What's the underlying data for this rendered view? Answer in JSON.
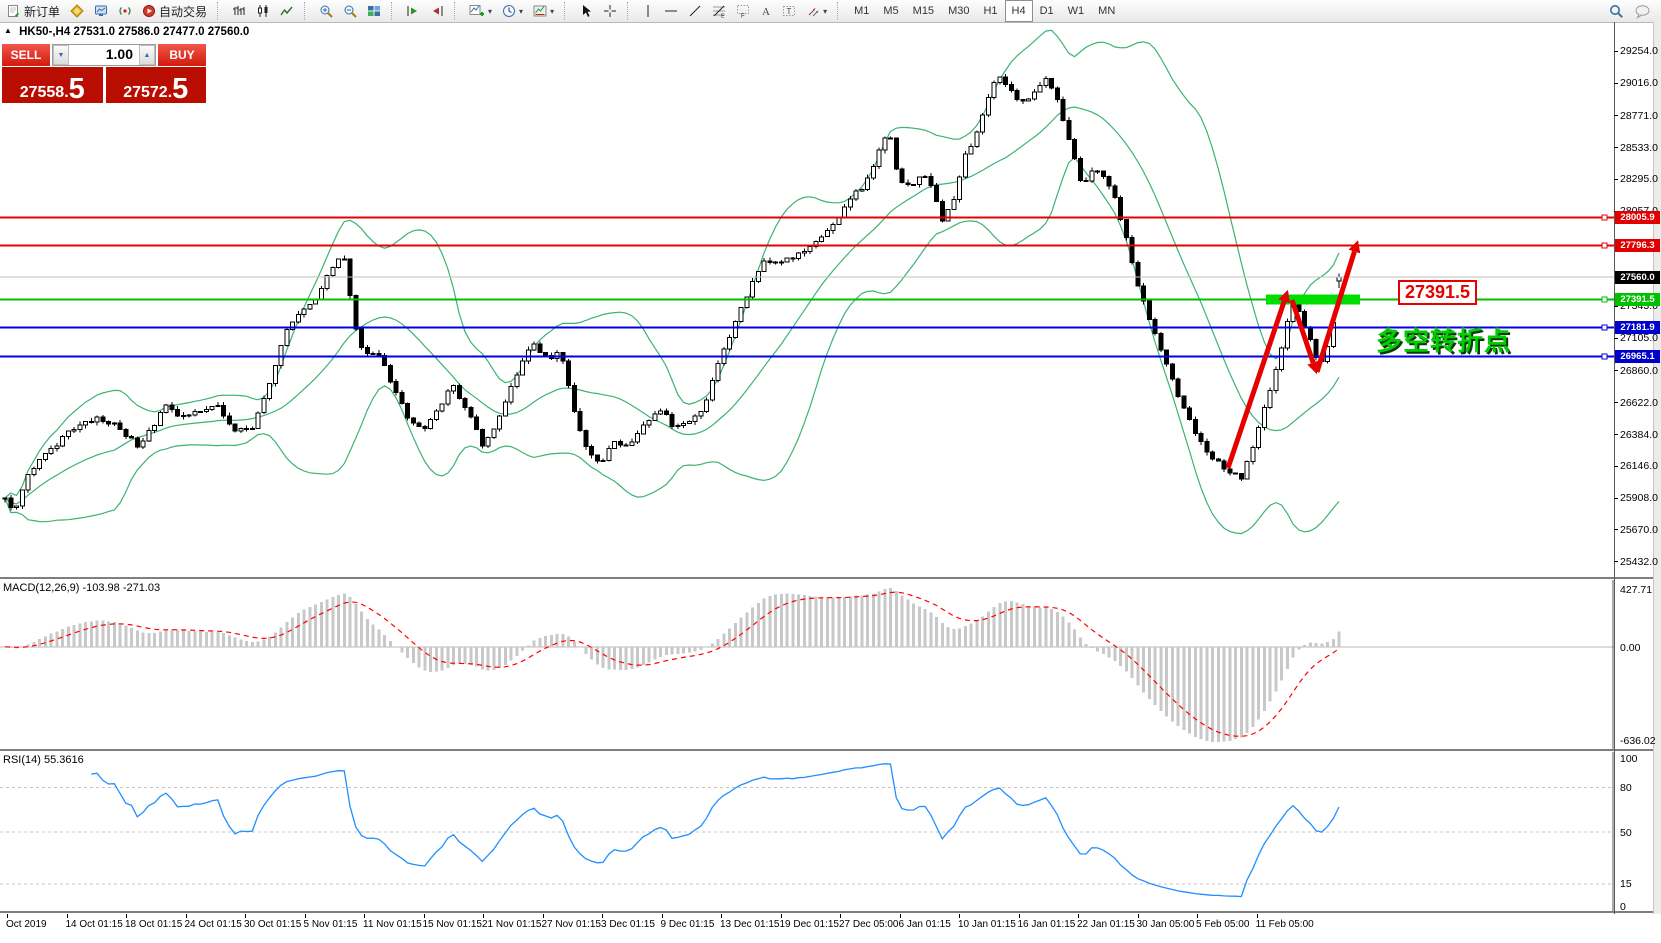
{
  "toolbar": {
    "new_order_label": "新订单",
    "auto_trading_label": "自动交易",
    "timeframes": [
      "M1",
      "M5",
      "M15",
      "M30",
      "H1",
      "H4",
      "D1",
      "W1",
      "MN"
    ],
    "active_timeframe": "H4"
  },
  "trade_panel": {
    "sell_label": "SELL",
    "buy_label": "BUY",
    "volume": "1.00",
    "sell_price": "27558.5",
    "buy_price": "27572.5"
  },
  "chart_header": {
    "collapse_marker": "▲",
    "symbol_period": "HK50-,H4",
    "ohlc": "27531.0 27586.0 27477.0 27560.0"
  },
  "annotations": {
    "level_box_label": "27391.5",
    "note_text": "多空转折点"
  },
  "macd_panel": {
    "label": "MACD(12,26,9)",
    "values": "-103.98 -271.03",
    "scale_top": "427.71",
    "scale_zero": "0.00",
    "scale_bottom": "-636.02"
  },
  "rsi_panel": {
    "label": "RSI(14)",
    "value": "55.3616",
    "scale_top": "100",
    "scale_bottom": "0",
    "levels": [
      80,
      50,
      15
    ]
  },
  "chart_data": {
    "type": "candlestick",
    "symbol": "HK50-",
    "period": "H4",
    "last_ohlc": {
      "open": 27531.0,
      "high": 27586.0,
      "low": 27477.0,
      "close": 27560.0
    },
    "bid": 27558.5,
    "ask": 27572.5,
    "candle_step": 5.75,
    "price_axis": {
      "top_price": 29470,
      "bottom_price": 25313,
      "ticks": [
        "29254.0",
        "29016.0",
        "28771.0",
        "28533.0",
        "28295.0",
        "28057.0",
        "27343.0",
        "27105.0",
        "26860.0",
        "26622.0",
        "26384.0",
        "26146.0",
        "25908.0",
        "25670.0",
        "25432.0"
      ]
    },
    "badges": [
      {
        "text": "28005.9",
        "price": 28005.9,
        "color": "#e00000"
      },
      {
        "text": "27796.3",
        "price": 27796.3,
        "color": "#e00000"
      },
      {
        "text": "27560.0",
        "price": 27560.0,
        "color": "#000000"
      },
      {
        "text": "27391.5",
        "price": 27391.5,
        "color": "#00c000"
      },
      {
        "text": "27181.9",
        "price": 27181.9,
        "color": "#0000cc"
      },
      {
        "text": "26965.1",
        "price": 26965.1,
        "color": "#0000cc"
      }
    ],
    "hlines": [
      {
        "price": 28005.9,
        "color": "#e60000",
        "width": 2,
        "name": "resistance-line-28005"
      },
      {
        "price": 27796.3,
        "color": "#e60000",
        "width": 2,
        "name": "resistance-line-27796"
      },
      {
        "price": 27560.0,
        "color": "#c0c0c0",
        "width": 1,
        "name": "current-price-line"
      },
      {
        "price": 27391.5,
        "color": "#00c000",
        "width": 2,
        "name": "support-line-27391"
      },
      {
        "price": 27181.9,
        "color": "#0000e0",
        "width": 2,
        "name": "support-line-27181"
      },
      {
        "price": 26965.1,
        "color": "#0000e0",
        "width": 2,
        "name": "support-line-26965"
      }
    ],
    "time_labels": [
      "Oct 2019",
      "14 Oct 01:15",
      "18 Oct 01:15",
      "24 Oct 01:15",
      "30 Oct 01:15",
      "5 Nov 01:15",
      "11 Nov 01:15",
      "15 Nov 01:15",
      "21 Nov 01:15",
      "27 Nov 01:15",
      "3 Dec 01:15",
      "9 Dec 01:15",
      "13 Dec 01:15",
      "19 Dec 01:15",
      "27 Dec 05:00",
      "6 Jan 01:15",
      "10 Jan 01:15",
      "16 Jan 01:15",
      "22 Jan 01:15",
      "30 Jan 05:00",
      "5 Feb 05:00",
      "11 Feb 05:00"
    ],
    "bollinger": {
      "period": 20,
      "deviation": 2,
      "color": "#3CB371"
    },
    "macd": {
      "fast": 12,
      "slow": 26,
      "signal": 9,
      "histogram_color": "#c8c8c8",
      "signal_color": "#ff0000"
    },
    "rsi": {
      "period": 14,
      "color": "#1f8fff"
    },
    "price_path": [
      [
        0,
        25950
      ],
      [
        12,
        25790
      ],
      [
        25,
        26090
      ],
      [
        45,
        26240
      ],
      [
        70,
        26420
      ],
      [
        95,
        26510
      ],
      [
        115,
        26440
      ],
      [
        135,
        26300
      ],
      [
        150,
        26420
      ],
      [
        163,
        26620
      ],
      [
        178,
        26500
      ],
      [
        196,
        26560
      ],
      [
        215,
        26600
      ],
      [
        232,
        26410
      ],
      [
        250,
        26430
      ],
      [
        265,
        26690
      ],
      [
        282,
        27140
      ],
      [
        300,
        27300
      ],
      [
        315,
        27390
      ],
      [
        330,
        27640
      ],
      [
        342,
        27710
      ],
      [
        352,
        27210
      ],
      [
        362,
        26960
      ],
      [
        375,
        27000
      ],
      [
        390,
        26760
      ],
      [
        405,
        26510
      ],
      [
        420,
        26410
      ],
      [
        435,
        26560
      ],
      [
        450,
        26750
      ],
      [
        465,
        26560
      ],
      [
        480,
        26310
      ],
      [
        495,
        26460
      ],
      [
        512,
        26800
      ],
      [
        530,
        27070
      ],
      [
        545,
        26950
      ],
      [
        558,
        27000
      ],
      [
        572,
        26560
      ],
      [
        585,
        26260
      ],
      [
        598,
        26160
      ],
      [
        612,
        26330
      ],
      [
        628,
        26290
      ],
      [
        645,
        26480
      ],
      [
        660,
        26580
      ],
      [
        672,
        26430
      ],
      [
        688,
        26490
      ],
      [
        702,
        26590
      ],
      [
        715,
        26900
      ],
      [
        730,
        27150
      ],
      [
        748,
        27480
      ],
      [
        762,
        27670
      ],
      [
        778,
        27650
      ],
      [
        792,
        27720
      ],
      [
        806,
        27780
      ],
      [
        820,
        27880
      ],
      [
        835,
        27970
      ],
      [
        850,
        28170
      ],
      [
        862,
        28230
      ],
      [
        875,
        28470
      ],
      [
        886,
        28670
      ],
      [
        897,
        28290
      ],
      [
        910,
        28260
      ],
      [
        925,
        28330
      ],
      [
        940,
        27990
      ],
      [
        952,
        28140
      ],
      [
        963,
        28470
      ],
      [
        974,
        28620
      ],
      [
        985,
        28870
      ],
      [
        995,
        29070
      ],
      [
        1005,
        28980
      ],
      [
        1015,
        28900
      ],
      [
        1025,
        28870
      ],
      [
        1035,
        28980
      ],
      [
        1045,
        29060
      ],
      [
        1055,
        28910
      ],
      [
        1068,
        28560
      ],
      [
        1080,
        28240
      ],
      [
        1092,
        28380
      ],
      [
        1102,
        28310
      ],
      [
        1112,
        28180
      ],
      [
        1124,
        27860
      ],
      [
        1136,
        27480
      ],
      [
        1150,
        27200
      ],
      [
        1165,
        26900
      ],
      [
        1180,
        26600
      ],
      [
        1195,
        26350
      ],
      [
        1210,
        26200
      ],
      [
        1225,
        26110
      ],
      [
        1240,
        26050
      ],
      [
        1255,
        26400
      ],
      [
        1270,
        26760
      ],
      [
        1282,
        27100
      ],
      [
        1290,
        27380
      ],
      [
        1300,
        27250
      ],
      [
        1310,
        27050
      ],
      [
        1318,
        26890
      ],
      [
        1326,
        27060
      ],
      [
        1334,
        27310
      ],
      [
        1342,
        27560
      ]
    ]
  }
}
